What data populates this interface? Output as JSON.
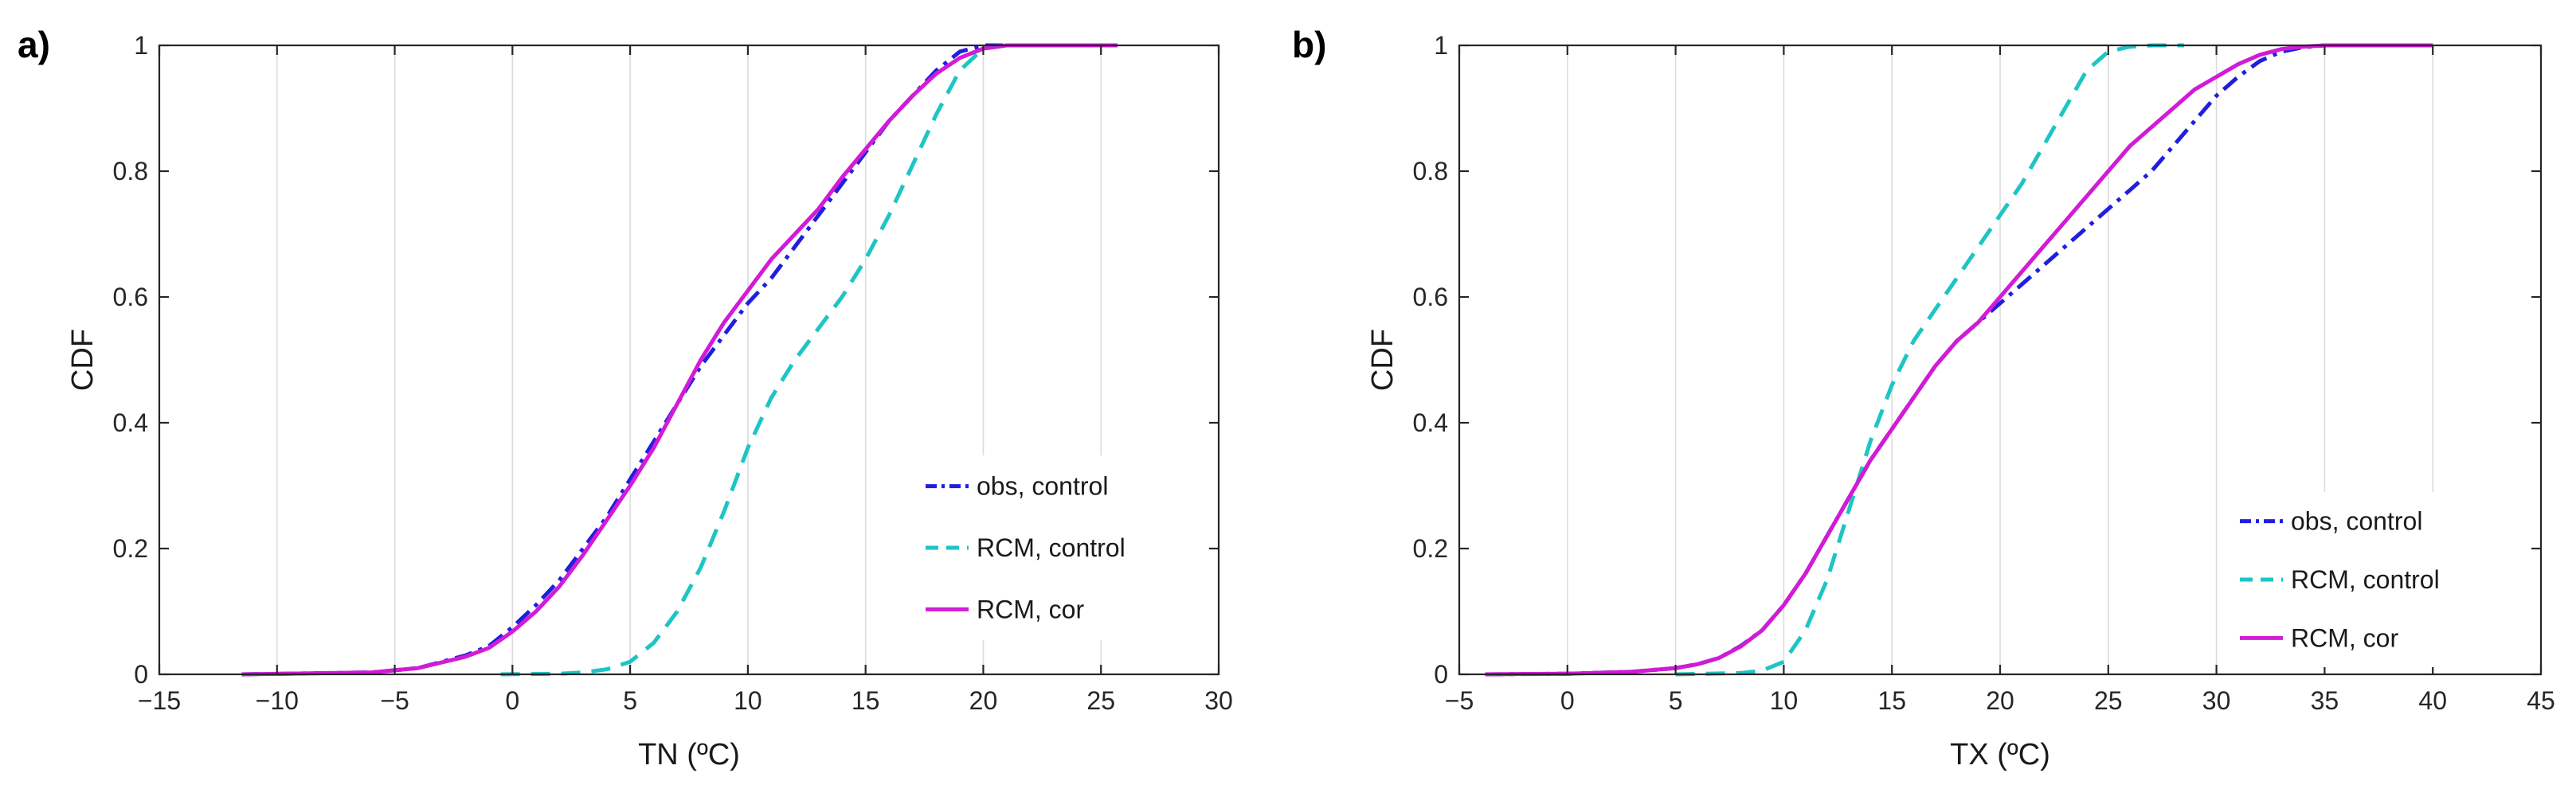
{
  "colors": {
    "obs_control": "#1f1fe0",
    "rcm_control": "#1fc4c4",
    "rcm_cor": "#d21bd6"
  },
  "chart_data": [
    {
      "type": "line",
      "panel": "a)",
      "xlabel": "TN (ºC)",
      "ylabel": "CDF",
      "xlim": [
        -15,
        30
      ],
      "ylim": [
        0,
        1
      ],
      "xticks": [
        -15,
        -10,
        -5,
        0,
        5,
        10,
        15,
        20,
        25,
        30
      ],
      "xtick_labels": [
        "−15",
        "−10",
        "−5",
        "0",
        "5",
        "10",
        "15",
        "20",
        "25",
        "30"
      ],
      "yticks": [
        0,
        0.2,
        0.4,
        0.6,
        0.8,
        1
      ],
      "ytick_labels": [
        "0",
        "0.2",
        "0.4",
        "0.6",
        "0.8",
        "1"
      ],
      "grid": "vertical",
      "legend_position": "lower-right",
      "series": [
        {
          "name": "obs, control",
          "style": "dashdot",
          "color_key": "obs_control",
          "x": [
            -11.5,
            -6,
            -4,
            -2,
            -1,
            0,
            1,
            2,
            3,
            4,
            5,
            6,
            7,
            8,
            9,
            10,
            11,
            12,
            13,
            14,
            15,
            16,
            17,
            18,
            19,
            20,
            21,
            25.5
          ],
          "y": [
            0,
            0.003,
            0.01,
            0.03,
            0.045,
            0.075,
            0.11,
            0.15,
            0.2,
            0.25,
            0.31,
            0.37,
            0.43,
            0.49,
            0.54,
            0.59,
            0.63,
            0.68,
            0.73,
            0.78,
            0.83,
            0.88,
            0.92,
            0.96,
            0.99,
            1.0,
            1.0,
            1.0
          ]
        },
        {
          "name": "RCM, control",
          "style": "dashed",
          "color_key": "rcm_control",
          "x": [
            -0.5,
            2,
            3,
            4,
            5,
            6,
            7,
            8,
            9,
            10,
            11,
            12,
            13,
            14,
            15,
            16,
            17,
            18,
            19,
            20,
            21
          ],
          "y": [
            0,
            0.001,
            0.003,
            0.008,
            0.02,
            0.05,
            0.1,
            0.17,
            0.26,
            0.36,
            0.44,
            0.5,
            0.55,
            0.6,
            0.66,
            0.73,
            0.81,
            0.89,
            0.96,
            0.995,
            1.0
          ]
        },
        {
          "name": "RCM, cor",
          "style": "solid",
          "color_key": "rcm_cor",
          "x": [
            -11.5,
            -6,
            -4,
            -2,
            -1,
            0,
            1,
            2,
            3,
            4,
            5,
            6,
            7,
            8,
            9,
            10,
            11,
            12,
            13,
            14,
            15,
            16,
            17,
            18,
            19,
            20,
            21,
            22,
            25.7
          ],
          "y": [
            0,
            0.003,
            0.01,
            0.028,
            0.042,
            0.068,
            0.1,
            0.14,
            0.19,
            0.245,
            0.3,
            0.36,
            0.43,
            0.5,
            0.56,
            0.61,
            0.66,
            0.7,
            0.74,
            0.79,
            0.835,
            0.88,
            0.92,
            0.955,
            0.98,
            0.995,
            1.0,
            1.0,
            1.0
          ]
        }
      ]
    },
    {
      "type": "line",
      "panel": "b)",
      "xlabel": "TX (ºC)",
      "ylabel": "CDF",
      "xlim": [
        -5,
        45
      ],
      "ylim": [
        0,
        1
      ],
      "xticks": [
        -5,
        0,
        5,
        10,
        15,
        20,
        25,
        30,
        35,
        40,
        45
      ],
      "xtick_labels": [
        "−5",
        "0",
        "5",
        "10",
        "15",
        "20",
        "25",
        "30",
        "35",
        "40",
        "45"
      ],
      "yticks": [
        0,
        0.2,
        0.4,
        0.6,
        0.8,
        1
      ],
      "ytick_labels": [
        "0",
        "0.2",
        "0.4",
        "0.6",
        "0.8",
        "1"
      ],
      "grid": "vertical",
      "legend_position": "lower-right",
      "series": [
        {
          "name": "obs, control",
          "style": "dashdot",
          "color_key": "obs_control",
          "x": [
            -3.8,
            0,
            3,
            5,
            6,
            7,
            8,
            9,
            10,
            11,
            12,
            13,
            14,
            15,
            16,
            17,
            18,
            19,
            20,
            21,
            22,
            23,
            24,
            25,
            26,
            27,
            28,
            29,
            30,
            31,
            32,
            33,
            34,
            35,
            40
          ],
          "y": [
            0,
            0.001,
            0.004,
            0.01,
            0.016,
            0.026,
            0.045,
            0.07,
            0.11,
            0.16,
            0.22,
            0.28,
            0.34,
            0.39,
            0.44,
            0.49,
            0.53,
            0.56,
            0.59,
            0.62,
            0.65,
            0.68,
            0.71,
            0.74,
            0.77,
            0.8,
            0.84,
            0.88,
            0.92,
            0.95,
            0.975,
            0.99,
            0.997,
            1.0,
            1.0
          ]
        },
        {
          "name": "RCM, control",
          "style": "dashed",
          "color_key": "rcm_control",
          "x": [
            5,
            8,
            9,
            10,
            11,
            12,
            13,
            14,
            15,
            16,
            17,
            18,
            19,
            20,
            21,
            22,
            23,
            24,
            25,
            26,
            27,
            28.5
          ],
          "y": [
            0,
            0.002,
            0.006,
            0.02,
            0.07,
            0.15,
            0.26,
            0.37,
            0.46,
            0.53,
            0.58,
            0.63,
            0.68,
            0.73,
            0.78,
            0.84,
            0.9,
            0.96,
            0.99,
            0.998,
            1.0,
            1.0
          ]
        },
        {
          "name": "RCM, cor",
          "style": "solid",
          "color_key": "rcm_cor",
          "x": [
            -3.8,
            0,
            3,
            5,
            6,
            7,
            8,
            9,
            10,
            11,
            12,
            13,
            14,
            15,
            16,
            17,
            18,
            19,
            20,
            21,
            22,
            23,
            24,
            25,
            26,
            27,
            28,
            29,
            30,
            31,
            32,
            33,
            34,
            35,
            40
          ],
          "y": [
            0,
            0.001,
            0.004,
            0.01,
            0.016,
            0.026,
            0.044,
            0.07,
            0.11,
            0.16,
            0.22,
            0.28,
            0.34,
            0.39,
            0.44,
            0.49,
            0.53,
            0.56,
            0.6,
            0.64,
            0.68,
            0.72,
            0.76,
            0.8,
            0.84,
            0.87,
            0.9,
            0.93,
            0.95,
            0.97,
            0.985,
            0.994,
            0.998,
            1.0,
            1.0
          ]
        }
      ]
    }
  ]
}
